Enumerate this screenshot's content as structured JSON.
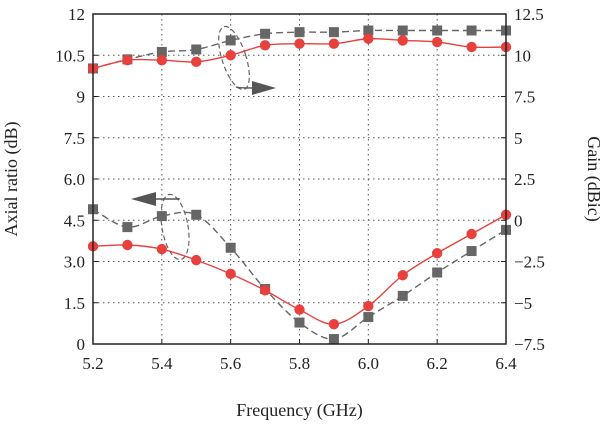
{
  "chart_data": {
    "type": "line",
    "xlabel": "Frequency (GHz)",
    "ylabel_left": "Axial ratio (dB)",
    "ylabel_right": "Gain (dBic)",
    "xlim": [
      5.2,
      6.4
    ],
    "ylim_left": [
      0,
      12
    ],
    "ylim_right": [
      -7.5,
      12.5
    ],
    "x_ticks": [
      "5.2",
      "5.4",
      "5.6",
      "5.8",
      "6.0",
      "6.2",
      "6.4"
    ],
    "y_left_ticks": [
      "0",
      "1.5",
      "3.0",
      "4.5",
      "6.0",
      "7.5",
      "9",
      "10.5",
      "12"
    ],
    "y_right_ticks": [
      "−7.5",
      "−5",
      "−2.5",
      "0",
      "2.5",
      "5",
      "7.5",
      "10",
      "12.5"
    ],
    "grid": true,
    "x": [
      5.2,
      5.3,
      5.4,
      5.5,
      5.6,
      5.7,
      5.8,
      5.9,
      6.0,
      6.1,
      6.2,
      6.3,
      6.4
    ],
    "series": [
      {
        "axis": "left",
        "marker": "circle",
        "line": "solid",
        "color": "#e8403c",
        "values": [
          3.55,
          3.6,
          3.45,
          3.05,
          2.55,
          1.95,
          1.25,
          0.72,
          1.38,
          2.5,
          3.3,
          4.0,
          4.7
        ]
      },
      {
        "axis": "left",
        "marker": "square",
        "line": "dashed",
        "color": "#666666",
        "values": [
          4.9,
          4.25,
          4.65,
          4.7,
          3.5,
          2.0,
          0.78,
          0.18,
          0.98,
          1.75,
          2.6,
          3.38,
          4.15
        ]
      },
      {
        "axis": "right",
        "marker": "circle",
        "line": "solid",
        "color": "#e8403c",
        "values": [
          9.2,
          9.7,
          9.7,
          9.6,
          10.0,
          10.6,
          10.7,
          10.7,
          11.0,
          10.9,
          10.8,
          10.5,
          10.5
        ]
      },
      {
        "axis": "right",
        "marker": "square",
        "line": "dashed",
        "color": "#666666",
        "values": [
          9.2,
          9.75,
          10.2,
          10.35,
          10.9,
          11.3,
          11.4,
          11.4,
          11.5,
          11.5,
          11.5,
          11.5,
          11.5
        ]
      }
    ],
    "annotations": [
      {
        "kind": "ellipse-arrow",
        "group": "gain",
        "arrow_direction": "right"
      },
      {
        "kind": "ellipse-arrow",
        "group": "axial-ratio",
        "arrow_direction": "left"
      }
    ]
  }
}
